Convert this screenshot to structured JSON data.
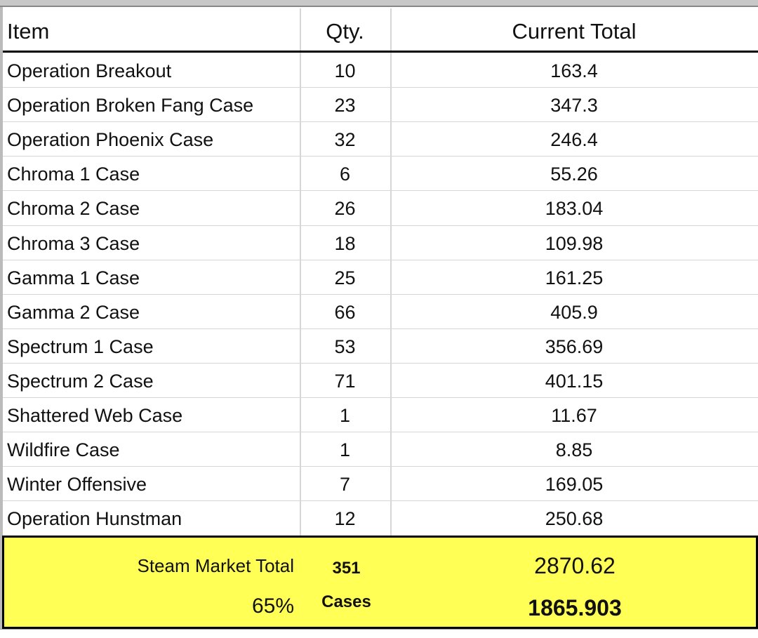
{
  "table": {
    "header": [
      "Item",
      "Qty.",
      "Current Total"
    ],
    "rows": [
      [
        "Operation Breakout",
        "10",
        "163.4"
      ],
      [
        "Operation Broken Fang Case",
        "23",
        "347.3"
      ],
      [
        "Operation Phoenix Case",
        "32",
        "246.4"
      ],
      [
        "Chroma 1 Case",
        "6",
        "55.26"
      ],
      [
        "Chroma 2 Case",
        "26",
        "183.04"
      ],
      [
        "Chroma 3 Case",
        "18",
        "109.98"
      ],
      [
        "Gamma 1 Case",
        "25",
        "161.25"
      ],
      [
        "Gamma 2 Case",
        "66",
        "405.9"
      ],
      [
        "Spectrum 1 Case",
        "53",
        "356.69"
      ],
      [
        "Spectrum 2 Case",
        "71",
        "401.15"
      ],
      [
        "Shattered Web Case",
        "1",
        "11.67"
      ],
      [
        "Wildfire Case",
        "1",
        "8.85"
      ],
      [
        "Winter Offensive",
        "7",
        "169.05"
      ],
      [
        "Operation Hunstman",
        "12",
        "250.68"
      ]
    ]
  },
  "summary": {
    "label": "Steam Market Total",
    "qty": "351",
    "total": "2870.62",
    "percent": "65%",
    "unit": "Cases",
    "share": "1865.903"
  }
}
